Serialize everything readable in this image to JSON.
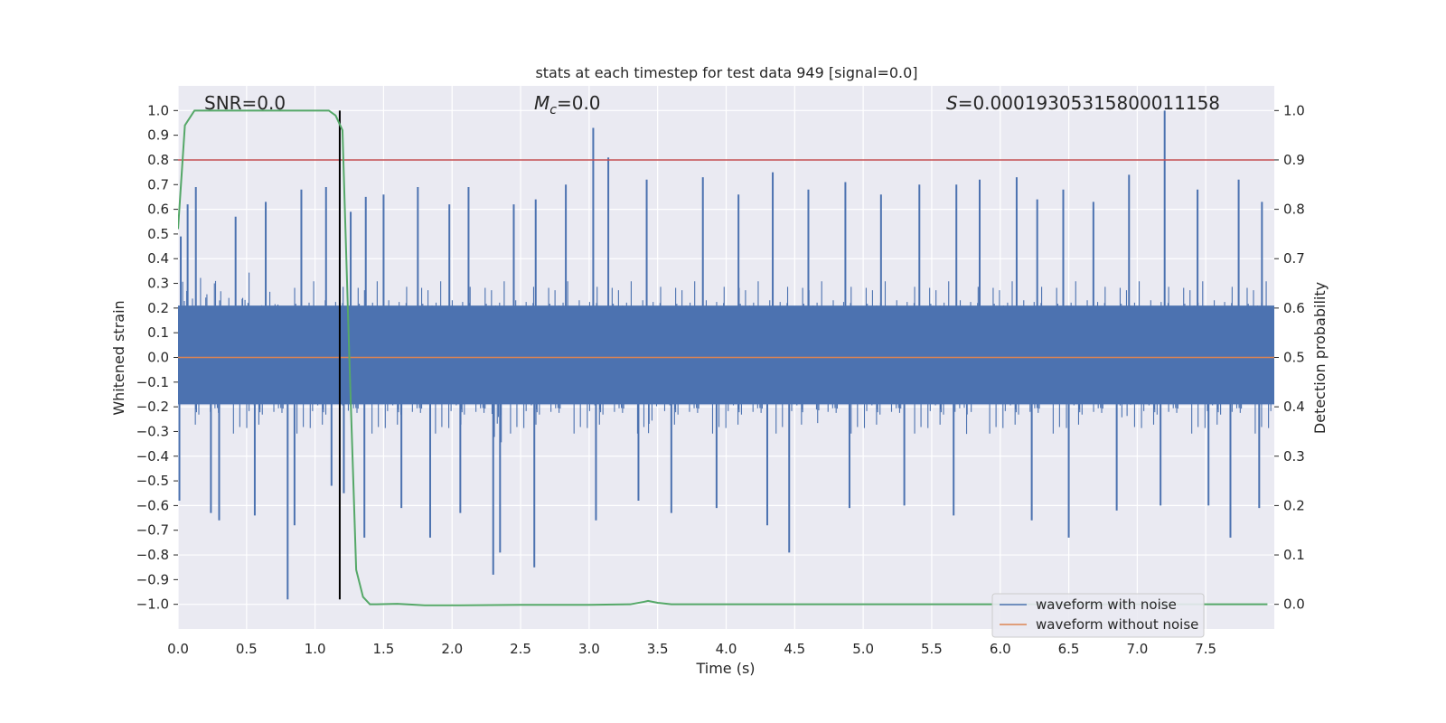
{
  "chart_data": {
    "type": "line",
    "title": "stats at each timestep for test data 949 [signal=0.0]",
    "xlabel": "Time (s)",
    "ylabel_left": "Whitened strain",
    "ylabel_right": "Detection probability",
    "xlim": [
      0.0,
      8.0
    ],
    "ylim_left": [
      -1.1,
      1.1
    ],
    "ylim_right": [
      -0.05,
      1.05
    ],
    "x_ticks": [
      "0.0",
      "0.5",
      "1.0",
      "1.5",
      "2.0",
      "2.5",
      "3.0",
      "3.5",
      "4.0",
      "4.5",
      "5.0",
      "5.5",
      "6.0",
      "6.5",
      "7.0",
      "7.5"
    ],
    "y_ticks_left": [
      "1.0",
      "0.9",
      "0.8",
      "0.7",
      "0.6",
      "0.5",
      "0.4",
      "0.3",
      "0.2",
      "0.1",
      "0.0",
      "−0.1",
      "−0.2",
      "−0.3",
      "−0.4",
      "−0.5",
      "−0.6",
      "−0.7",
      "−0.8",
      "−0.9",
      "−1.0"
    ],
    "y_ticks_right": [
      "1.0",
      "0.9",
      "0.8",
      "0.7",
      "0.6",
      "0.5",
      "0.4",
      "0.3",
      "0.2",
      "0.1",
      "0.0"
    ],
    "grid": true,
    "legend_position": "lower-right",
    "annotations": {
      "snr": "SNR=0.0",
      "mc_symbol": "M",
      "mc_sub": "c",
      "mc_value": "=0.0",
      "s_symbol": "S",
      "s_value": "=0.00019305315800011158"
    },
    "series": [
      {
        "name": "waveform with noise",
        "axis": "left",
        "color": "#4c72b0",
        "description": "noise strain, approximately symmetric about 0, typical amplitude ±0.3–0.5",
        "peaks_up": [
          [
            0.02,
            0.49
          ],
          [
            0.07,
            0.62
          ],
          [
            0.13,
            0.69
          ],
          [
            0.42,
            0.57
          ],
          [
            0.64,
            0.63
          ],
          [
            0.9,
            0.68
          ],
          [
            1.08,
            0.69
          ],
          [
            1.26,
            0.59
          ],
          [
            1.37,
            0.65
          ],
          [
            1.5,
            0.66
          ],
          [
            1.75,
            0.69
          ],
          [
            1.98,
            0.62
          ],
          [
            2.12,
            0.69
          ],
          [
            2.45,
            0.62
          ],
          [
            2.61,
            0.64
          ],
          [
            2.83,
            0.7
          ],
          [
            3.03,
            0.93
          ],
          [
            3.14,
            0.81
          ],
          [
            3.42,
            0.72
          ],
          [
            3.83,
            0.73
          ],
          [
            4.09,
            0.66
          ],
          [
            4.34,
            0.75
          ],
          [
            4.6,
            0.68
          ],
          [
            4.87,
            0.71
          ],
          [
            5.13,
            0.66
          ],
          [
            5.41,
            0.7
          ],
          [
            5.68,
            0.7
          ],
          [
            5.85,
            0.72
          ],
          [
            6.12,
            0.73
          ],
          [
            6.27,
            0.64
          ],
          [
            6.46,
            0.68
          ],
          [
            6.68,
            0.63
          ],
          [
            6.94,
            0.74
          ],
          [
            7.2,
            1.0
          ],
          [
            7.44,
            0.68
          ],
          [
            7.74,
            0.72
          ],
          [
            7.91,
            0.63
          ]
        ],
        "peaks_down": [
          [
            0.01,
            -0.58
          ],
          [
            0.24,
            -0.63
          ],
          [
            0.3,
            -0.66
          ],
          [
            0.56,
            -0.64
          ],
          [
            0.8,
            -0.98
          ],
          [
            0.85,
            -0.68
          ],
          [
            1.12,
            -0.52
          ],
          [
            1.21,
            -0.55
          ],
          [
            1.36,
            -0.73
          ],
          [
            1.63,
            -0.61
          ],
          [
            1.84,
            -0.73
          ],
          [
            2.06,
            -0.63
          ],
          [
            2.3,
            -0.88
          ],
          [
            2.35,
            -0.79
          ],
          [
            2.6,
            -0.85
          ],
          [
            3.05,
            -0.66
          ],
          [
            3.36,
            -0.58
          ],
          [
            3.6,
            -0.63
          ],
          [
            3.93,
            -0.61
          ],
          [
            4.3,
            -0.68
          ],
          [
            4.46,
            -0.79
          ],
          [
            4.9,
            -0.61
          ],
          [
            5.3,
            -0.6
          ],
          [
            5.66,
            -0.64
          ],
          [
            6.23,
            -0.66
          ],
          [
            6.5,
            -0.73
          ],
          [
            6.85,
            -0.62
          ],
          [
            7.17,
            -0.6
          ],
          [
            7.52,
            -0.6
          ],
          [
            7.68,
            -0.73
          ],
          [
            7.89,
            -0.61
          ]
        ]
      },
      {
        "name": "waveform without noise",
        "axis": "left",
        "color": "#dd8452",
        "x": [
          0.0,
          8.0
        ],
        "y": [
          0.0,
          0.0
        ]
      },
      {
        "name": "detection probability",
        "axis": "right",
        "color": "#55a868",
        "x": [
          0.0,
          0.05,
          0.12,
          0.2,
          0.5,
          0.8,
          1.0,
          1.1,
          1.15,
          1.2,
          1.25,
          1.3,
          1.35,
          1.4,
          1.45,
          1.6,
          1.8,
          2.0,
          2.5,
          3.0,
          3.3,
          3.4,
          3.43,
          3.5,
          3.6,
          4.0,
          5.0,
          6.0,
          7.0,
          7.95
        ],
        "y": [
          0.76,
          0.97,
          1.0,
          1.0,
          1.0,
          1.0,
          1.0,
          1.0,
          0.99,
          0.96,
          0.5,
          0.07,
          0.015,
          0.0,
          0.0,
          0.001,
          -0.002,
          -0.002,
          -0.001,
          -0.001,
          0.0,
          0.005,
          0.007,
          0.003,
          0.0,
          0.0,
          0.0,
          0.0,
          0.0,
          0.0
        ]
      }
    ],
    "reference_lines": [
      {
        "orientation": "horizontal",
        "axis": "left",
        "value": 0.8,
        "color": "#c44e52"
      },
      {
        "orientation": "vertical",
        "value": 1.18,
        "y_from": -0.98,
        "y_to": 1.0,
        "color": "#000000"
      }
    ]
  }
}
